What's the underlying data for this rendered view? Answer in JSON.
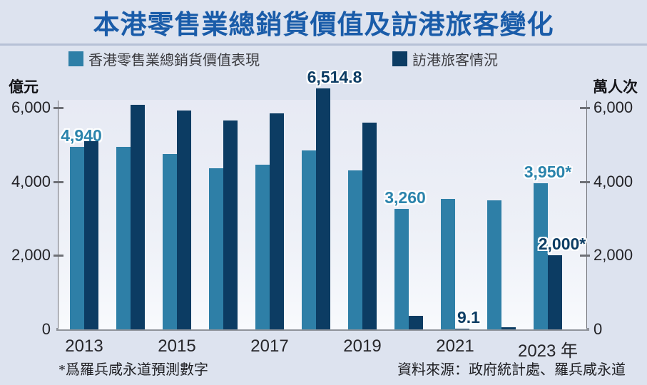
{
  "title": "本港零售業總銷貨價值及訪港旅客變化",
  "legend": [
    {
      "label": "香港零售業總銷貨價值表現",
      "color": "#2e7fa7"
    },
    {
      "label": "訪港旅客情況",
      "color": "#0c3c63"
    }
  ],
  "axes": {
    "left_unit": "億元",
    "right_unit": "萬人次",
    "x_suffix": "年"
  },
  "footnotes": {
    "left": "*爲羅兵咸永道預測數字",
    "right": "資料來源：政府統計處、羅兵咸永道"
  },
  "colors": {
    "retail_bar": "#2e7fa7",
    "visitors_bar": "#0c3c63",
    "title_blue": "#1a5ca9",
    "background": "#dde3ef",
    "axis_gray": "#6e7076"
  },
  "chart_data": {
    "type": "bar",
    "title": "本港零售業總銷貨價值及訪港旅客變化",
    "categories": [
      2013,
      2014,
      2015,
      2016,
      2017,
      2018,
      2019,
      2020,
      2021,
      2022,
      2023
    ],
    "x_tick_labels": [
      "2013",
      "2015",
      "2017",
      "2019",
      "2021",
      "2023"
    ],
    "y_ticks": [
      0,
      2000,
      4000,
      6000
    ],
    "y_tick_labels": [
      "0",
      "2,000",
      "4,000",
      "6,000"
    ],
    "ylim": [
      0,
      6700
    ],
    "grid": false,
    "legend_position": "top",
    "left_axis_label": "億元",
    "right_axis_label": "萬人次",
    "series": [
      {
        "name": "香港零售業總銷貨價值表現",
        "key": "retail",
        "color": "#2e7fa7",
        "label_color": "#2b84ac",
        "values": [
          4940,
          4930,
          4750,
          4360,
          4450,
          4850,
          4310,
          3260,
          3530,
          3500,
          3950
        ],
        "point_labels": {
          "0": "4,940",
          "7": "3,260",
          "10": "3,950*"
        }
      },
      {
        "name": "訪港旅客情況",
        "key": "visitors",
        "color": "#0c3c63",
        "label_color": "#0d3d64",
        "values": [
          5100,
          6070,
          5930,
          5650,
          5850,
          6514.8,
          5590,
          357,
          9.1,
          60,
          2000
        ],
        "point_labels": {
          "5": "6,514.8",
          "8": "9.1",
          "10": "2,000*"
        }
      }
    ]
  }
}
